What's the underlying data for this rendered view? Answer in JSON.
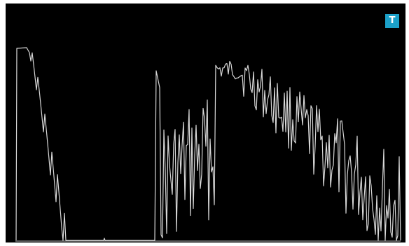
{
  "badge": {
    "label": "T",
    "color": "#1ba0c8"
  },
  "trace": {
    "color": "#d8d8d8",
    "baseline_color": "#bdbdbd",
    "background": "#000000"
  }
}
